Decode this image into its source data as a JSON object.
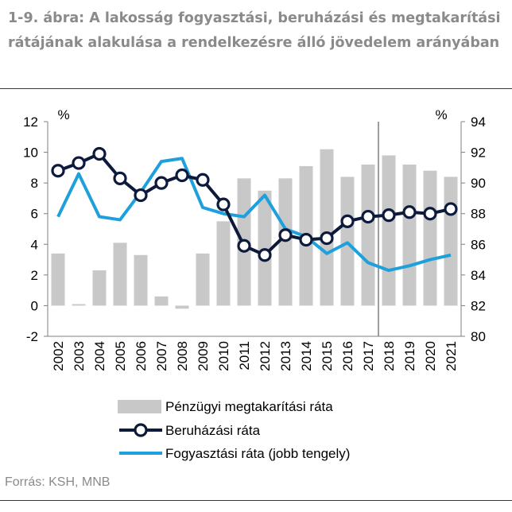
{
  "title": "1-9. ábra: A lakosság fogyasztási, beruházási és megtakarítási rátájának alakulása a rendelkezésre álló jövedelem arányában",
  "source": "Forrás: KSH, MNB",
  "chart_data": {
    "type": "bar+line",
    "categories": [
      "2002",
      "2003",
      "2004",
      "2005",
      "2006",
      "2007",
      "2008",
      "2009",
      "2010",
      "2011",
      "2012",
      "2013",
      "2014",
      "2015",
      "2016",
      "2017",
      "2018",
      "2019",
      "2020",
      "2021"
    ],
    "left_axis": {
      "unit": "%",
      "min": -2,
      "max": 12,
      "ticks": [
        -2,
        0,
        2,
        4,
        6,
        8,
        10,
        12
      ]
    },
    "right_axis": {
      "unit": "%",
      "min": 80,
      "max": 94,
      "ticks": [
        80,
        82,
        84,
        86,
        88,
        90,
        92,
        94
      ]
    },
    "series": [
      {
        "name": "Pénzügyi megtakarítási ráta",
        "type": "bar",
        "axis": "left",
        "color": "#c8c8c8",
        "values": [
          3.4,
          0.1,
          2.3,
          4.1,
          3.3,
          0.6,
          -0.2,
          3.4,
          5.5,
          8.3,
          7.5,
          8.3,
          9.1,
          10.2,
          8.4,
          9.2,
          9.8,
          9.2,
          8.8,
          8.4
        ]
      },
      {
        "name": "Beruházási ráta",
        "type": "line-marker",
        "axis": "left",
        "color": "#0d1a3c",
        "values": [
          8.8,
          9.3,
          9.9,
          8.3,
          7.2,
          8.0,
          8.5,
          8.2,
          6.6,
          3.9,
          3.3,
          4.6,
          4.3,
          4.4,
          5.5,
          5.8,
          5.9,
          6.1,
          6.0,
          6.3
        ]
      },
      {
        "name": "Fogyasztási ráta (jobb tengely)",
        "type": "line",
        "axis": "right",
        "color": "#1ea0dc",
        "values": [
          87.8,
          90.6,
          87.8,
          87.6,
          89.4,
          91.4,
          91.6,
          88.4,
          88.0,
          87.8,
          89.2,
          87.0,
          86.5,
          85.4,
          86.1,
          84.8,
          84.3,
          84.6,
          85.0,
          85.3
        ]
      }
    ],
    "vertical_marker_after": "2017",
    "grid": false,
    "legend_position": "bottom"
  }
}
